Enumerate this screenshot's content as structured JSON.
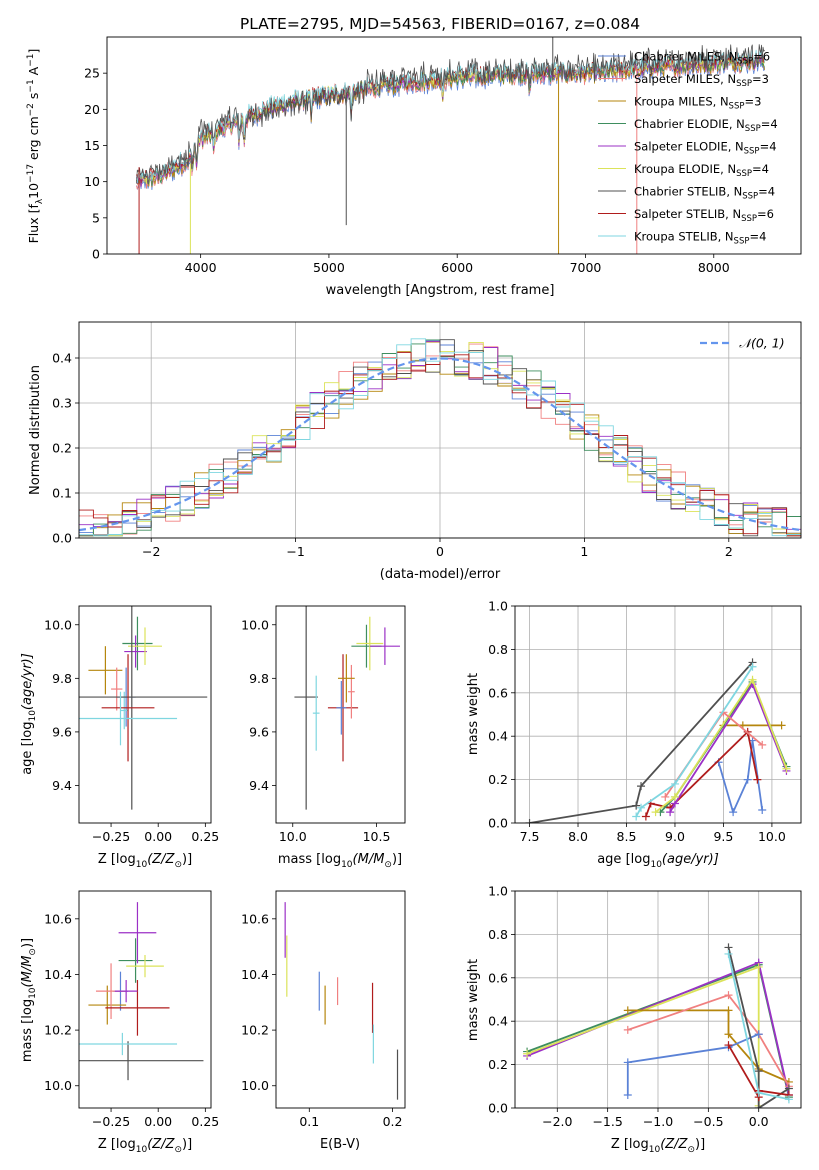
{
  "figure": {
    "title": "PLATE=2795, MJD=54563, FIBERID=0167, z=0.084"
  },
  "colors": {
    "chab_miles": "#5b82d6",
    "salp_miles": "#f08080",
    "krou_miles": "#b5860d",
    "chab_elodie": "#3e8e5e",
    "salp_elodie": "#9b30c6",
    "krou_elodie": "#dbe35a",
    "chab_stelib": "#505050",
    "salp_stelib": "#b01c1c",
    "krou_stelib": "#7fd6e0",
    "normal": "#6495ed",
    "ssp": [
      "#5b82d6",
      "#e8801e",
      "#3e8e5e",
      "#b01c1c",
      "#9b30c6",
      "#8c564b",
      "#e377c2",
      "#505050",
      "#c5d65a",
      "#7fd6e0"
    ]
  },
  "chart_data": [
    {
      "id": "spectrum",
      "type": "line",
      "xlabel": "wavelength [Angstrom, rest frame]",
      "ylabel": "Flux [f$_\\lambda$10$^{-17}$ erg cm$^{-2}$ s$^{-1}$ A$^{-1}$]",
      "ylabel_parts": [
        "Flux [f",
        "λ",
        "10",
        "−17",
        " erg cm",
        "−2",
        " s",
        "−1",
        " A",
        "−1",
        "]"
      ],
      "xlim": [
        3270,
        8680
      ],
      "ylim": [
        0,
        30
      ],
      "xticks": [
        4000,
        5000,
        6000,
        7000,
        8000
      ],
      "yticks": [
        0,
        5,
        10,
        15,
        20,
        25
      ],
      "legend_position": "top-right",
      "series": [
        {
          "name": "Chabrier MILES, N",
          "nssp": "6",
          "color_key": "chab_miles"
        },
        {
          "name": "Salpeter MILES, N",
          "nssp": "3",
          "color_key": "salp_miles"
        },
        {
          "name": "Kroupa MILES, N",
          "nssp": "3",
          "color_key": "krou_miles"
        },
        {
          "name": "Chabrier ELODIE, N",
          "nssp": "4",
          "color_key": "chab_elodie"
        },
        {
          "name": "Salpeter ELODIE, N",
          "nssp": "4",
          "color_key": "salp_elodie"
        },
        {
          "name": "Kroupa ELODIE, N",
          "nssp": "4",
          "color_key": "krou_elodie"
        },
        {
          "name": "Chabrier STELIB, N",
          "nssp": "4",
          "color_key": "chab_stelib"
        },
        {
          "name": "Salpeter STELIB, N",
          "nssp": "6",
          "color_key": "salp_stelib"
        },
        {
          "name": "Kroupa STELIB, N",
          "nssp": "4",
          "color_key": "krou_stelib"
        }
      ],
      "continuum": [
        [
          3500,
          10
        ],
        [
          3700,
          11
        ],
        [
          3900,
          13
        ],
        [
          4000,
          16
        ],
        [
          4300,
          18.5
        ],
        [
          4500,
          20
        ],
        [
          4800,
          21.5
        ],
        [
          5000,
          22
        ],
        [
          5500,
          23.5
        ],
        [
          6000,
          24.5
        ],
        [
          6500,
          25
        ],
        [
          7000,
          25
        ],
        [
          7500,
          25.8
        ],
        [
          8000,
          26.5
        ],
        [
          8400,
          26.8
        ]
      ]
    },
    {
      "id": "residuals",
      "type": "line",
      "xlabel": "(data-model)/error",
      "ylabel": "Normed distribution",
      "xlim": [
        -2.5,
        2.5
      ],
      "ylim": [
        0,
        0.48
      ],
      "xticks": [
        -2,
        -1,
        0,
        1,
        2
      ],
      "yticks": [
        0.0,
        0.1,
        0.2,
        0.3,
        0.4
      ],
      "grid": true,
      "legend_position": "top-right",
      "normal_label": "𝒩(0, 1)"
    },
    {
      "id": "age_vs_Z",
      "type": "scatter",
      "xlabel": "Z [log",
      "xlabel_tail": "(Z/Z",
      "ylabel": "age  [log",
      "ylabel_tail": "(age/yr)]",
      "xlim": [
        -0.42,
        0.28
      ],
      "ylim": [
        9.26,
        10.07
      ],
      "xticks": [
        -0.25,
        0.0,
        0.25
      ],
      "yticks": [
        9.4,
        9.6,
        9.8,
        10.0
      ],
      "points": [
        {
          "x": -0.17,
          "y": 9.73,
          "xerr": 0.05,
          "yerr": 0.11,
          "color_key": "chab_miles"
        },
        {
          "x": -0.18,
          "y": 9.68,
          "xerr": 0.02,
          "yerr": 0.07,
          "color_key": "krou_stelib"
        },
        {
          "x": -0.28,
          "y": 9.83,
          "xerr": 0.09,
          "yerr": 0.09,
          "color_key": "krou_miles"
        },
        {
          "x": -0.22,
          "y": 9.76,
          "xerr": 0.03,
          "yerr": 0.08,
          "color_key": "salp_miles"
        },
        {
          "x": -0.11,
          "y": 9.93,
          "xerr": 0.08,
          "yerr": 0.1,
          "color_key": "chab_elodie"
        },
        {
          "x": -0.12,
          "y": 9.9,
          "xerr": 0.06,
          "yerr": 0.06,
          "color_key": "salp_elodie"
        },
        {
          "x": -0.07,
          "y": 9.92,
          "xerr": 0.09,
          "yerr": 0.07,
          "color_key": "krou_elodie"
        },
        {
          "x": -0.14,
          "y": 9.73,
          "xerr": 0.4,
          "yerr": 0.42,
          "color_key": "chab_stelib"
        },
        {
          "x": -0.16,
          "y": 9.69,
          "xerr": 0.14,
          "yerr": 0.2,
          "color_key": "salp_stelib"
        },
        {
          "x": -0.2,
          "y": 9.65,
          "xerr": 0.3,
          "yerr": 0.1,
          "color_key": "krou_stelib"
        }
      ]
    },
    {
      "id": "age_vs_mass",
      "type": "scatter",
      "xlabel": "mass [log",
      "xlabel_tail": "(M/M",
      "ylabel": "",
      "xlim": [
        9.9,
        10.67
      ],
      "ylim": [
        9.26,
        10.07
      ],
      "xticks": [
        10.0,
        10.5
      ],
      "yticks": [
        9.4,
        9.6,
        9.8,
        10.0
      ],
      "points": [
        {
          "x": 10.08,
          "y": 9.73,
          "xerr": 0.07,
          "yerr": 0.42,
          "color_key": "chab_stelib"
        },
        {
          "x": 10.14,
          "y": 9.67,
          "xerr": 0.02,
          "yerr": 0.14,
          "color_key": "krou_stelib"
        },
        {
          "x": 10.3,
          "y": 9.69,
          "xerr": 0.09,
          "yerr": 0.2,
          "color_key": "salp_stelib"
        },
        {
          "x": 10.35,
          "y": 9.75,
          "xerr": 0.02,
          "yerr": 0.1,
          "color_key": "salp_miles"
        },
        {
          "x": 10.32,
          "y": 9.8,
          "xerr": 0.05,
          "yerr": 0.09,
          "color_key": "krou_miles"
        },
        {
          "x": 10.44,
          "y": 9.92,
          "xerr": 0.09,
          "yerr": 0.08,
          "color_key": "chab_elodie"
        },
        {
          "x": 10.46,
          "y": 9.93,
          "xerr": 0.08,
          "yerr": 0.1,
          "color_key": "krou_elodie"
        },
        {
          "x": 10.55,
          "y": 9.92,
          "xerr": 0.09,
          "yerr": 0.07,
          "color_key": "salp_elodie"
        },
        {
          "x": 10.29,
          "y": 9.69,
          "xerr": 0.03,
          "yerr": 0.1,
          "color_key": "chab_miles"
        }
      ]
    },
    {
      "id": "mass_weight_vs_age",
      "type": "line",
      "xlabel": "age  [log",
      "xlabel_tail": "(age/yr)]",
      "ylabel": "mass weight",
      "xlim": [
        7.35,
        10.3
      ],
      "ylim": [
        0,
        1.0
      ],
      "xticks": [
        7.5,
        8.0,
        8.5,
        9.0,
        9.5,
        10.0
      ],
      "yticks": [
        0.0,
        0.2,
        0.4,
        0.6,
        0.8,
        1.0
      ],
      "grid": true,
      "series": [
        {
          "color_key": "chab_stelib",
          "x": [
            7.5,
            8.6,
            8.65,
            9.8
          ],
          "y": [
            0.0,
            0.08,
            0.17,
            0.74
          ]
        },
        {
          "color_key": "chab_miles",
          "x": [
            9.45,
            9.6,
            9.75,
            9.8,
            9.9
          ],
          "y": [
            0.28,
            0.05,
            0.2,
            0.38,
            0.06
          ]
        },
        {
          "color_key": "krou_miles",
          "x": [
            9.5,
            9.7,
            10.1
          ],
          "y": [
            0.45,
            0.45,
            0.45
          ]
        },
        {
          "color_key": "salp_stelib",
          "x": [
            8.7,
            8.75,
            8.95,
            9.75,
            9.85
          ],
          "y": [
            0.03,
            0.09,
            0.07,
            0.42,
            0.2
          ]
        },
        {
          "color_key": "chab_elodie",
          "x": [
            8.85,
            9.0,
            9.8,
            10.15
          ],
          "y": [
            0.05,
            0.12,
            0.65,
            0.26
          ]
        },
        {
          "color_key": "salp_elodie",
          "x": [
            8.95,
            9.0,
            9.8,
            10.15
          ],
          "y": [
            0.05,
            0.09,
            0.64,
            0.24
          ]
        },
        {
          "color_key": "krou_elodie",
          "x": [
            8.8,
            9.0,
            9.8,
            10.15
          ],
          "y": [
            0.05,
            0.12,
            0.66,
            0.25
          ]
        },
        {
          "color_key": "salp_miles",
          "x": [
            8.9,
            9.5,
            9.9
          ],
          "y": [
            0.12,
            0.51,
            0.36
          ]
        },
        {
          "color_key": "krou_stelib",
          "x": [
            8.6,
            8.65,
            9.0,
            9.8
          ],
          "y": [
            0.03,
            0.07,
            0.18,
            0.72
          ]
        }
      ]
    },
    {
      "id": "mass_vs_Z",
      "type": "scatter",
      "xlabel": "Z [log",
      "xlabel_tail": "(Z/Z",
      "ylabel": "mass [log",
      "ylabel_tail": "(M/M",
      "xlim": [
        -0.42,
        0.28
      ],
      "ylim": [
        9.92,
        10.7
      ],
      "xticks": [
        -0.25,
        0.0,
        0.25
      ],
      "yticks": [
        10.0,
        10.2,
        10.4,
        10.6
      ],
      "points": [
        {
          "x": -0.2,
          "y": 10.34,
          "xerr": 0.04,
          "yerr": 0.07,
          "color_key": "chab_miles"
        },
        {
          "x": -0.27,
          "y": 10.29,
          "xerr": 0.1,
          "yerr": 0.07,
          "color_key": "krou_miles"
        },
        {
          "x": -0.25,
          "y": 10.34,
          "xerr": 0.08,
          "yerr": 0.1,
          "color_key": "salp_miles"
        },
        {
          "x": -0.12,
          "y": 10.45,
          "xerr": 0.09,
          "yerr": 0.08,
          "color_key": "chab_elodie"
        },
        {
          "x": -0.11,
          "y": 10.55,
          "xerr": 0.1,
          "yerr": 0.11,
          "color_key": "salp_elodie"
        },
        {
          "x": -0.07,
          "y": 10.43,
          "xerr": 0.1,
          "yerr": 0.04,
          "color_key": "krou_elodie"
        },
        {
          "x": -0.16,
          "y": 10.09,
          "xerr": 0.4,
          "yerr": 0.07,
          "color_key": "chab_stelib"
        },
        {
          "x": -0.11,
          "y": 10.28,
          "xerr": 0.17,
          "yerr": 0.1,
          "color_key": "salp_stelib"
        },
        {
          "x": -0.19,
          "y": 10.15,
          "xerr": 0.29,
          "yerr": 0.04,
          "color_key": "krou_stelib"
        },
        {
          "x": -0.17,
          "y": 10.34,
          "xerr": 0.06,
          "yerr": 0.04,
          "color_key": "salp_elodie"
        }
      ]
    },
    {
      "id": "mass_vs_ebv",
      "type": "scatter",
      "xlabel": "E(B-V)",
      "ylabel": "",
      "xlim": [
        0.06,
        0.215
      ],
      "ylim": [
        9.92,
        10.7
      ],
      "xticks": [
        0.1,
        0.2
      ],
      "yticks": [
        10.0,
        10.2,
        10.4,
        10.6
      ],
      "points": [
        {
          "x": 0.071,
          "y": 10.56,
          "yerr": 0.1,
          "color_key": "salp_elodie"
        },
        {
          "x": 0.073,
          "y": 10.43,
          "yerr": 0.11,
          "color_key": "krou_elodie"
        },
        {
          "x": 0.112,
          "y": 10.34,
          "yerr": 0.07,
          "color_key": "chab_miles"
        },
        {
          "x": 0.119,
          "y": 10.29,
          "yerr": 0.07,
          "color_key": "krou_miles"
        },
        {
          "x": 0.134,
          "y": 10.34,
          "yerr": 0.05,
          "color_key": "salp_miles"
        },
        {
          "x": 0.176,
          "y": 10.28,
          "yerr": 0.09,
          "color_key": "salp_stelib"
        },
        {
          "x": 0.177,
          "y": 10.15,
          "yerr": 0.07,
          "color_key": "krou_stelib"
        },
        {
          "x": 0.206,
          "y": 10.04,
          "yerr": 0.09,
          "color_key": "chab_stelib"
        }
      ]
    },
    {
      "id": "mass_weight_vs_Z",
      "type": "line",
      "xlabel": "Z [log",
      "xlabel_tail": "(Z/Z",
      "ylabel": "mass weight",
      "xlim": [
        -2.42,
        0.42
      ],
      "ylim": [
        0,
        1.0
      ],
      "xticks": [
        -2.0,
        -1.5,
        -1.0,
        -0.5,
        0.0
      ],
      "yticks": [
        0.0,
        0.2,
        0.4,
        0.6,
        0.8,
        1.0
      ],
      "grid": true,
      "series": [
        {
          "color_key": "chab_elodie",
          "x": [
            -2.3,
            0.0,
            0.3
          ],
          "y": [
            0.26,
            0.66,
            0.05
          ]
        },
        {
          "color_key": "salp_elodie",
          "x": [
            -2.3,
            0.0,
            0.3
          ],
          "y": [
            0.24,
            0.67,
            0.06
          ]
        },
        {
          "color_key": "krou_elodie",
          "x": [
            -2.3,
            0.0,
            0.0
          ],
          "y": [
            0.25,
            0.65,
            0.01
          ]
        },
        {
          "color_key": "krou_miles",
          "x": [
            -1.3,
            -0.3,
            -0.3,
            0.0,
            0.3
          ],
          "y": [
            0.45,
            0.45,
            0.34,
            0.18,
            0.12
          ]
        },
        {
          "color_key": "salp_miles",
          "x": [
            -1.3,
            -0.3,
            0.0,
            0.3
          ],
          "y": [
            0.36,
            0.52,
            0.34,
            0.1
          ]
        },
        {
          "color_key": "chab_miles",
          "x": [
            -1.3,
            -1.3,
            -0.3,
            0.0
          ],
          "y": [
            0.06,
            0.21,
            0.28,
            0.34
          ]
        },
        {
          "color_key": "chab_stelib",
          "x": [
            -0.3,
            0.0,
            0.0,
            0.3
          ],
          "y": [
            0.74,
            0.17,
            0.0,
            0.09
          ]
        },
        {
          "color_key": "salp_stelib",
          "x": [
            -0.3,
            0.0,
            0.0,
            0.3
          ],
          "y": [
            0.29,
            0.05,
            0.08,
            0.06
          ]
        },
        {
          "color_key": "krou_stelib",
          "x": [
            -0.3,
            0.0,
            0.3
          ],
          "y": [
            0.71,
            0.07,
            0.04
          ]
        }
      ]
    }
  ]
}
